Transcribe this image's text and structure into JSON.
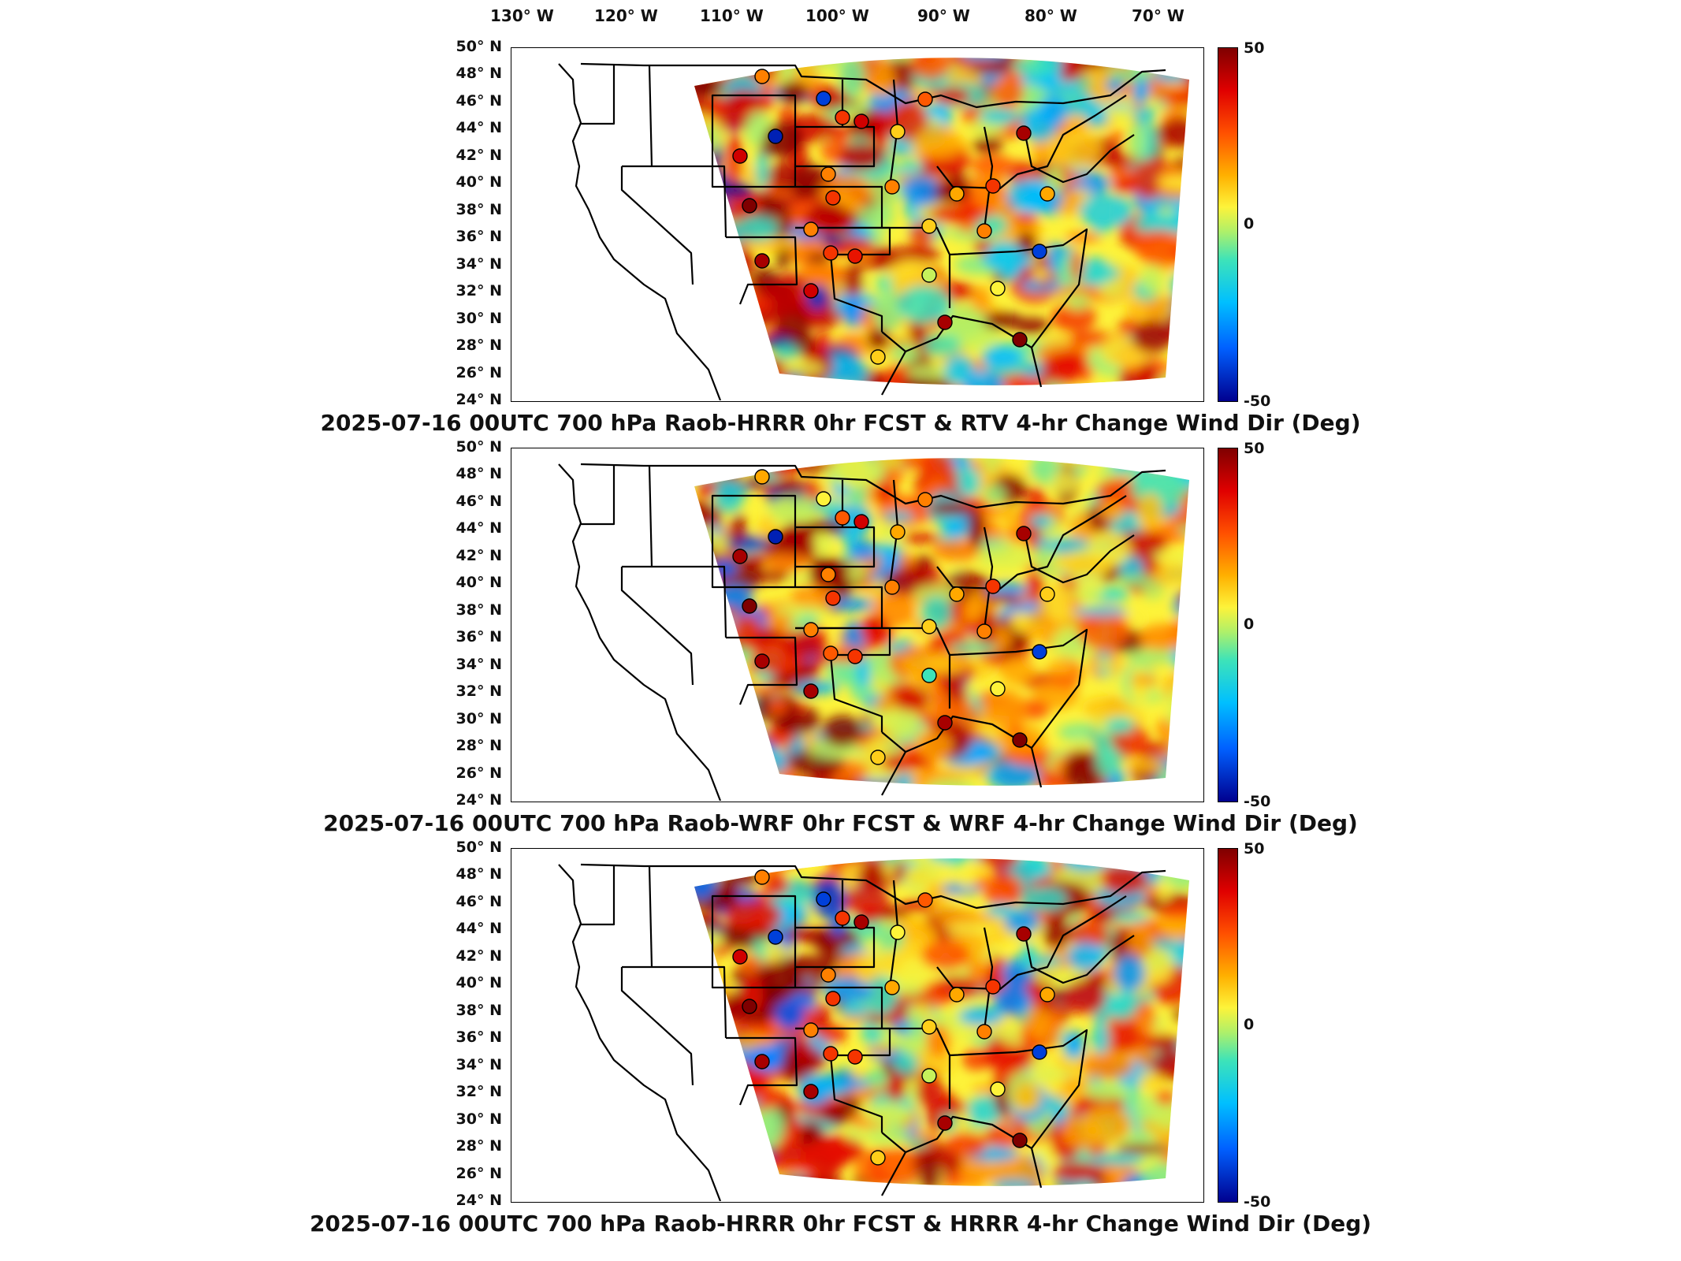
{
  "longitude_labels": [
    "130° W",
    "120° W",
    "110° W",
    "100° W",
    "90° W",
    "80° W",
    "70° W"
  ],
  "latitude_labels": [
    "50° N",
    "48° N",
    "46° N",
    "44° N",
    "42° N",
    "40° N",
    "38° N",
    "36° N",
    "34° N",
    "32° N",
    "30° N",
    "28° N",
    "26° N",
    "24° N"
  ],
  "colorbar": {
    "max": "50",
    "mid": "0",
    "min": "-50"
  },
  "colors": {
    "max": "#7f0000",
    "high": "#ff5000",
    "mid": "#aef06a",
    "low": "#0060ff",
    "min": "#00008f"
  },
  "panels": [
    {
      "title": "2025-07-16 00UTC 700 hPa Raob-HRRR 0hr FCST & RTV 4-hr Change Wind Dir (Deg)"
    },
    {
      "title": "2025-07-16 00UTC 700 hPa Raob-WRF 0hr FCST & WRF 4-hr Change Wind Dir (Deg)"
    },
    {
      "title": "2025-07-16 00UTC 700 hPa Raob-HRRR 0hr FCST & HRRR 4-hr Change Wind Dir (Deg)"
    }
  ],
  "raob_station_values": [
    [
      20,
      -40,
      -45,
      40,
      50,
      30,
      40,
      20,
      20,
      10,
      30,
      35,
      30,
      45,
      40,
      25,
      10,
      20,
      0,
      15,
      45,
      20,
      -40,
      30,
      45,
      15,
      5,
      10,
      50
    ],
    [
      15,
      5,
      -45,
      45,
      50,
      25,
      40,
      20,
      20,
      15,
      25,
      30,
      30,
      45,
      45,
      20,
      10,
      20,
      -10,
      15,
      45,
      20,
      -40,
      30,
      45,
      10,
      5,
      10,
      50
    ],
    [
      20,
      -40,
      -40,
      40,
      50,
      30,
      45,
      20,
      20,
      5,
      30,
      30,
      30,
      45,
      45,
      25,
      10,
      15,
      0,
      15,
      45,
      20,
      -40,
      30,
      45,
      15,
      5,
      10,
      50
    ]
  ]
}
